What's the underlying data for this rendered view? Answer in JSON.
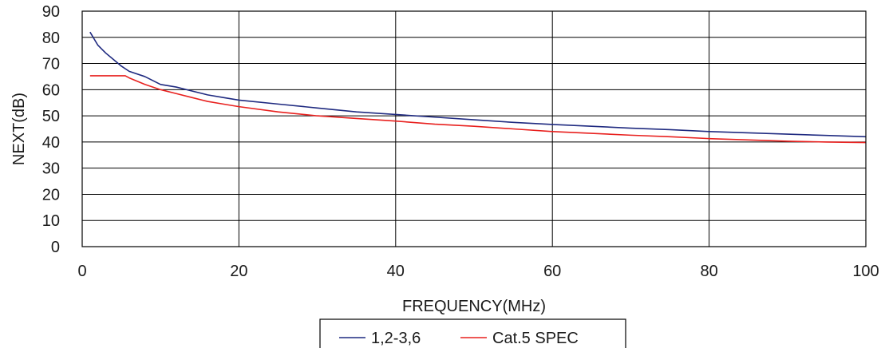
{
  "chart_data": {
    "type": "line",
    "title": "",
    "xlabel": "FREQUENCY(MHz)",
    "ylabel": "NEXT(dB)",
    "xlim": [
      0,
      100
    ],
    "ylim": [
      0,
      90
    ],
    "x_ticks": [
      0,
      20,
      40,
      60,
      80,
      100
    ],
    "y_ticks": [
      0,
      10,
      20,
      30,
      40,
      50,
      60,
      70,
      80,
      90
    ],
    "grid": "major, both axes",
    "legend_position": "bottom-center",
    "series": [
      {
        "name": "1,2-3,6",
        "color": "#1f2a80",
        "x": [
          1,
          2,
          3,
          4,
          5,
          6,
          8,
          10,
          12,
          14,
          16,
          18,
          20,
          25,
          30,
          35,
          40,
          45,
          50,
          55,
          60,
          65,
          70,
          75,
          80,
          85,
          90,
          95,
          100
        ],
        "y": [
          82,
          77,
          74,
          71.5,
          69,
          67,
          65,
          62,
          61,
          59.5,
          58,
          57,
          56,
          54.5,
          53,
          51.5,
          50.5,
          49.5,
          48.5,
          47.5,
          46.7,
          46,
          45.3,
          44.7,
          44,
          43.5,
          43,
          42.5,
          42
        ]
      },
      {
        "name": "Cat.5 SPEC",
        "color": "#e8201e",
        "x": [
          1,
          2,
          3,
          4,
          5,
          5.5,
          6,
          8,
          10,
          12,
          14,
          16,
          18,
          20,
          25,
          30,
          35,
          40,
          45,
          50,
          55,
          60,
          65,
          70,
          75,
          80,
          85,
          90,
          95,
          100
        ],
        "y": [
          65.3,
          65.3,
          65.3,
          65.3,
          65.3,
          65.3,
          64.5,
          62,
          60,
          58.5,
          57,
          55.5,
          54.5,
          53.5,
          51.5,
          50,
          49,
          48,
          46.8,
          46,
          45,
          44,
          43.3,
          42.6,
          42,
          41.3,
          40.8,
          40.3,
          40,
          39.8
        ]
      }
    ]
  }
}
